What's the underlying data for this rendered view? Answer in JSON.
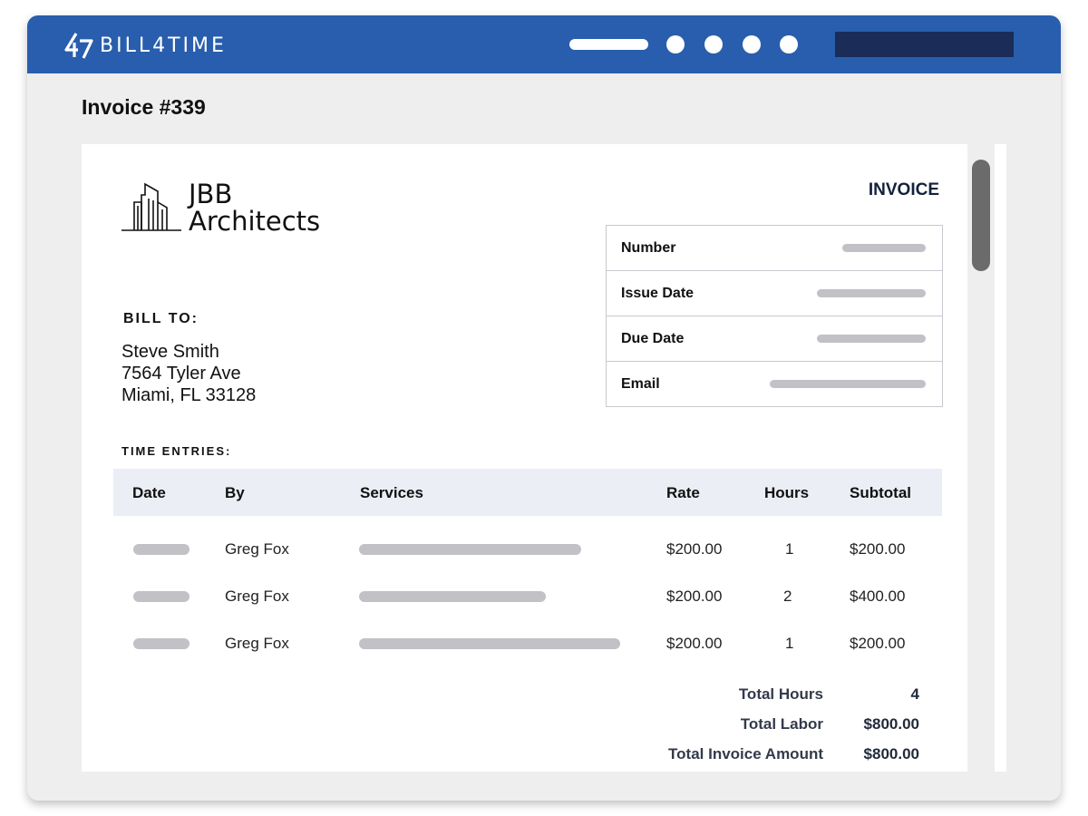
{
  "app": {
    "brand": "BILL4TIME",
    "brand_color": "#285ead",
    "page_title": "Invoice #339"
  },
  "invoice": {
    "company_name_line1": "JBB",
    "company_name_line2": "Architects",
    "label": "INVOICE",
    "meta_labels": [
      "Number",
      "Issue Date",
      "Due Date",
      "Email"
    ],
    "bill_to": {
      "label": "BILL TO:",
      "name": "Steve Smith",
      "street": "7564 Tyler Ave",
      "city": "Miami, FL 33128"
    },
    "time_entries_label": "TIME ENTRIES:",
    "columns": [
      "Date",
      "By",
      "Services",
      "Rate",
      "Hours",
      "Subtotal"
    ],
    "rows": [
      {
        "by": "Greg Fox",
        "rate": "$200.00",
        "hours": "1",
        "subtotal": "$200.00"
      },
      {
        "by": "Greg Fox",
        "rate": "$200.00",
        "hours": "2",
        "subtotal": "$400.00"
      },
      {
        "by": "Greg Fox",
        "rate": "$200.00",
        "hours": "1",
        "subtotal": "$200.00"
      }
    ],
    "totals": [
      {
        "label": "Total Hours",
        "value": "4"
      },
      {
        "label": "Total Labor",
        "value": "$800.00"
      },
      {
        "label": "Total Invoice Amount",
        "value": "$800.00"
      }
    ]
  }
}
